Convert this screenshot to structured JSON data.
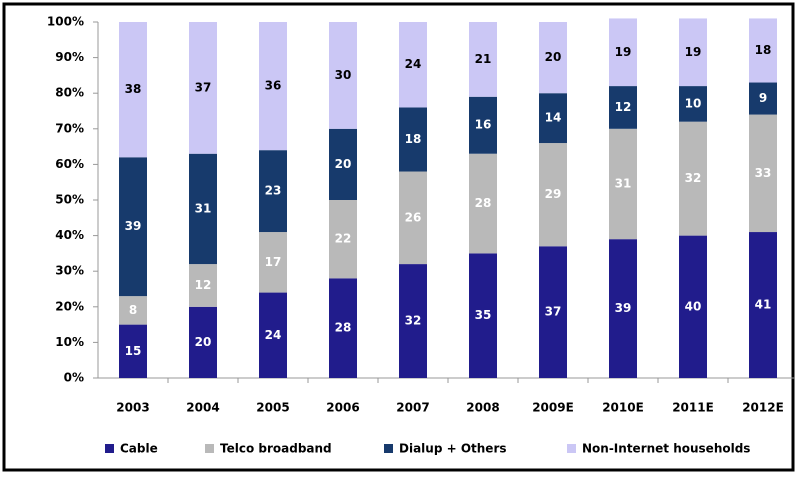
{
  "chart_data": {
    "type": "stacked_bar",
    "categories": [
      "2003",
      "2004",
      "2005",
      "2006",
      "2007",
      "2008",
      "2009E",
      "2010E",
      "2011E",
      "2012E"
    ],
    "series": [
      {
        "name": "Cable",
        "color": "#211c8c",
        "values": [
          15,
          20,
          24,
          28,
          32,
          35,
          37,
          39,
          40,
          41
        ]
      },
      {
        "name": "Telco broadband",
        "color": "#b9b9b9",
        "values": [
          8,
          12,
          17,
          22,
          26,
          28,
          29,
          31,
          32,
          33
        ]
      },
      {
        "name": "Dialup + Others",
        "color": "#173a6c",
        "values": [
          39,
          31,
          23,
          20,
          18,
          16,
          14,
          12,
          10,
          9
        ]
      },
      {
        "name": "Non-Internet households",
        "color": "#cbc7f5",
        "values": [
          38,
          37,
          36,
          30,
          24,
          21,
          20,
          19,
          19,
          18
        ]
      }
    ],
    "ylim": [
      0,
      100
    ],
    "yticks": [
      {
        "value": 0,
        "label": "0%"
      },
      {
        "value": 10,
        "label": "10%"
      },
      {
        "value": 20,
        "label": "20%"
      },
      {
        "value": 30,
        "label": "30%"
      },
      {
        "value": 40,
        "label": "40%"
      },
      {
        "value": 50,
        "label": "50%"
      },
      {
        "value": 60,
        "label": "60%"
      },
      {
        "value": 70,
        "label": "70%"
      },
      {
        "value": 80,
        "label": "80%"
      },
      {
        "value": 90,
        "label": "90%"
      },
      {
        "value": 100,
        "label": "100%"
      }
    ],
    "grid": false,
    "legend": "bottom"
  }
}
